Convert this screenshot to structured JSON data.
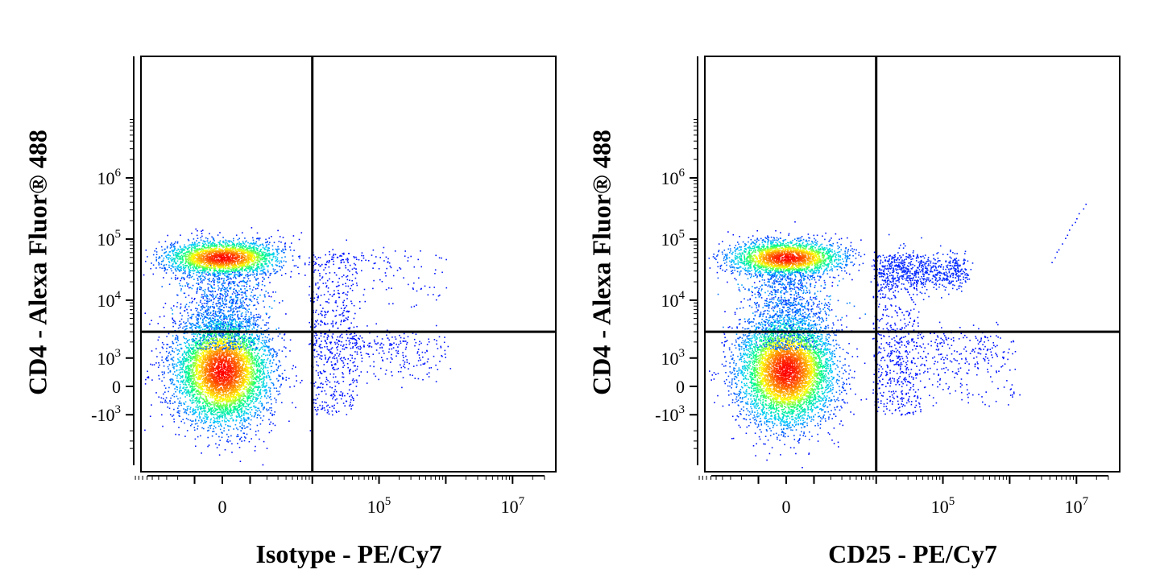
{
  "chart_data": [
    {
      "type": "scatter",
      "subtype": "flow-cytometry density dot plot (biexponential axes) with quadrant gates",
      "xlabel": "Isotype - PE/Cy7",
      "ylabel": "CD4 - Alexa Fluor® 488",
      "x_ticks": [
        {
          "base": "0",
          "exp": ""
        },
        {
          "base": "10",
          "exp": "5"
        },
        {
          "base": "10",
          "exp": "7"
        }
      ],
      "y_ticks": [
        {
          "base": "10",
          "exp": "6"
        },
        {
          "base": "10",
          "exp": "5"
        },
        {
          "base": "10",
          "exp": "4"
        },
        {
          "base": "10",
          "exp": "3"
        },
        {
          "base": "0",
          "exp": ""
        },
        {
          "base": "-10",
          "exp": "3"
        }
      ],
      "quadrant_gate": {
        "x": 10000,
        "y": 3000
      },
      "populations": [
        {
          "name": "CD4- cluster",
          "x_center": 0,
          "y_center": 500,
          "density": "high"
        },
        {
          "name": "CD4+ cluster",
          "x_center": 0,
          "y_center": 50000,
          "density": "high"
        },
        {
          "name": "isotype background",
          "x_range": [
            10000,
            1000000
          ],
          "y_range": [
            0,
            100000
          ],
          "density": "sparse"
        }
      ],
      "color_scale": [
        "#0000ff",
        "#00c8ff",
        "#00ff80",
        "#ffff00",
        "#ff8000",
        "#ff0000"
      ]
    },
    {
      "type": "scatter",
      "subtype": "flow-cytometry density dot plot (biexponential axes) with quadrant gates",
      "xlabel": "CD25 - PE/Cy7",
      "ylabel": "CD4 - Alexa Fluor® 488",
      "x_ticks": [
        {
          "base": "0",
          "exp": ""
        },
        {
          "base": "10",
          "exp": "5"
        },
        {
          "base": "10",
          "exp": "7"
        }
      ],
      "y_ticks": [
        {
          "base": "10",
          "exp": "6"
        },
        {
          "base": "10",
          "exp": "5"
        },
        {
          "base": "10",
          "exp": "4"
        },
        {
          "base": "10",
          "exp": "3"
        },
        {
          "base": "0",
          "exp": ""
        },
        {
          "base": "-10",
          "exp": "3"
        }
      ],
      "quadrant_gate": {
        "x": 10000,
        "y": 3000
      },
      "populations": [
        {
          "name": "CD4- cluster",
          "x_center": 0,
          "y_center": 500,
          "density": "high"
        },
        {
          "name": "CD4+ cluster",
          "x_center": 0,
          "y_center": 50000,
          "density": "high"
        },
        {
          "name": "CD4+ CD25+ cells",
          "x_range": [
            10000,
            200000
          ],
          "y_range": [
            20000,
            100000
          ],
          "density": "moderate"
        },
        {
          "name": "CD4- CD25+ background",
          "x_range": [
            10000,
            1000000
          ],
          "y_range": [
            0,
            3000
          ],
          "density": "sparse"
        }
      ],
      "color_scale": [
        "#0000ff",
        "#00c8ff",
        "#00ff80",
        "#ffff00",
        "#ff8000",
        "#ff0000"
      ]
    }
  ]
}
